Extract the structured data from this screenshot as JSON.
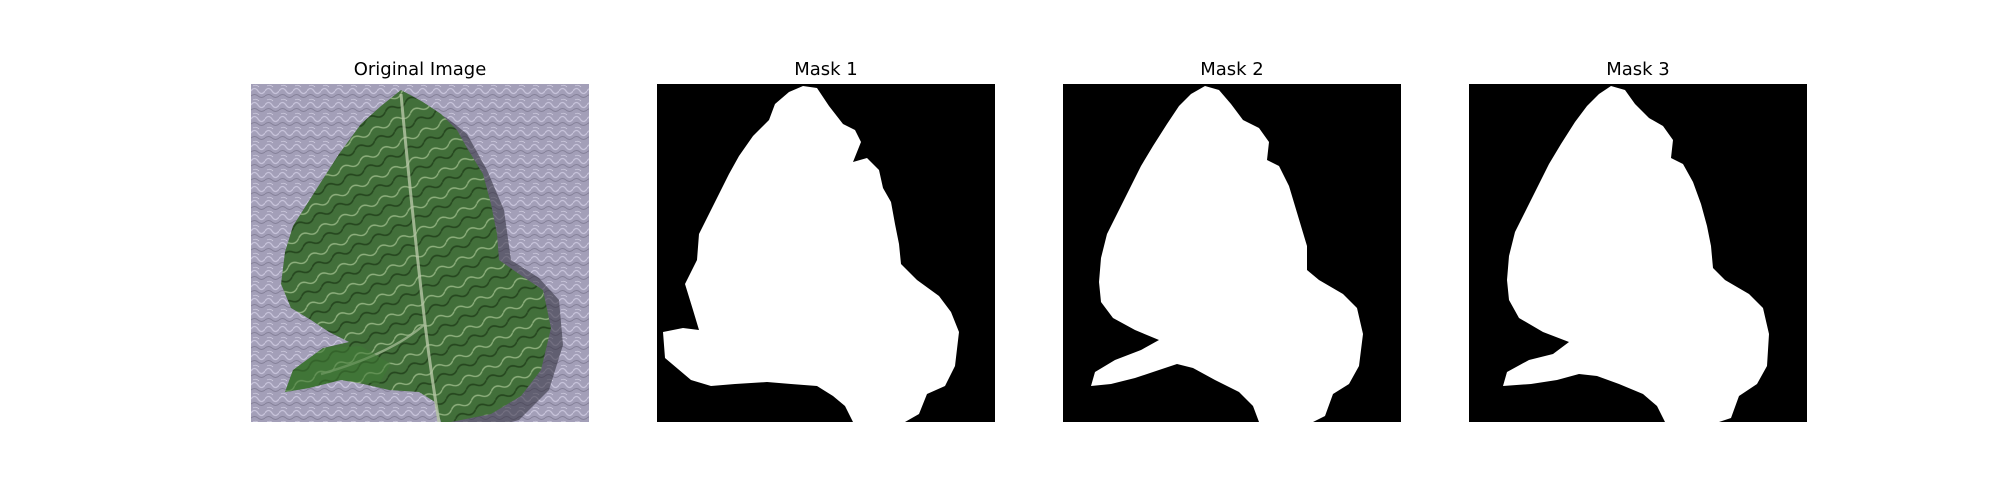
{
  "figure": {
    "panels": [
      {
        "title": "Original Image"
      },
      {
        "title": "Mask 1"
      },
      {
        "title": "Mask 2"
      },
      {
        "title": "Mask 3"
      }
    ]
  },
  "colors": {
    "background_fabric": "#a39fb8",
    "leaf_dark": "#2f5a2a",
    "leaf_mid": "#4f7d45",
    "leaf_light": "#8aa37a",
    "mask_bg": "#000000",
    "mask_fg": "#ffffff"
  }
}
